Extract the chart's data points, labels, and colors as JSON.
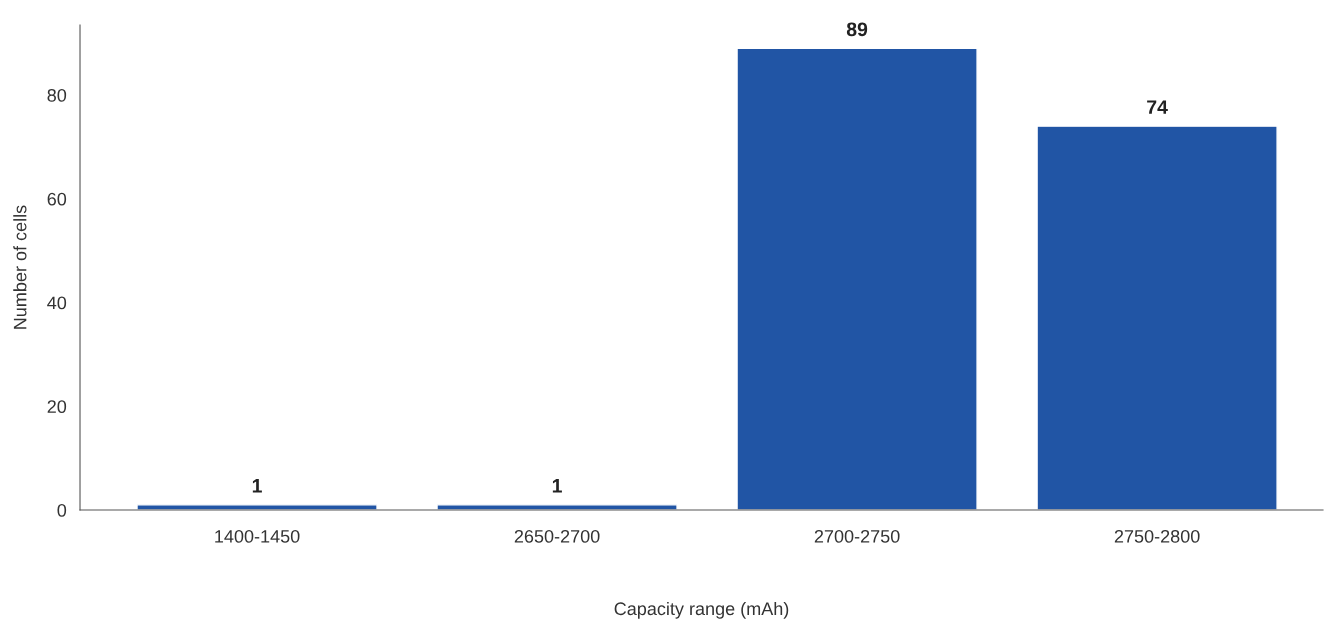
{
  "chart_data": {
    "type": "bar",
    "xlabel": "Capacity range (mAh)",
    "ylabel": "Number of cells",
    "categories": [
      "1400-1450",
      "2650-2700",
      "2700-2750",
      "2750-2800"
    ],
    "values": [
      1,
      1,
      89,
      74
    ],
    "color": "#2155a5",
    "data_labels": true,
    "ylim": [
      0,
      93.5
    ],
    "yticks": [
      0,
      20,
      40,
      60,
      80
    ],
    "grid": false,
    "legend": false
  }
}
